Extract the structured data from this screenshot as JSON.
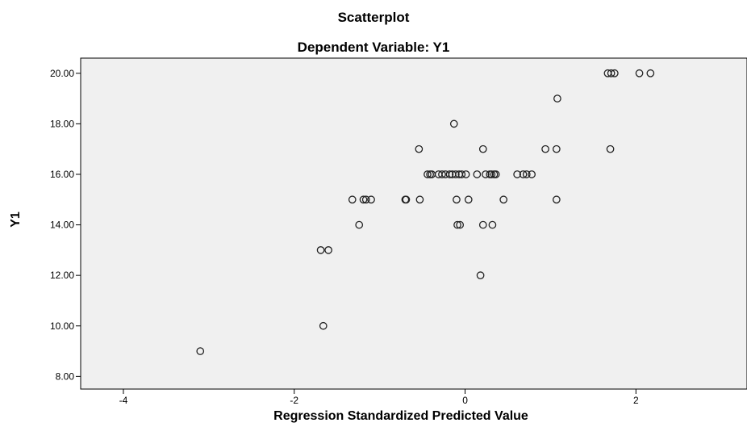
{
  "chart_data": {
    "type": "scatter",
    "title": "Scatterplot",
    "subtitle": "Dependent Variable: Y1",
    "xlabel": "Regression Standardized Predicted Value",
    "ylabel": "Y1",
    "xlim": [
      -4.5,
      3.3
    ],
    "ylim": [
      7.5,
      20.6
    ],
    "x_ticks": [
      -4,
      -2,
      0,
      2
    ],
    "x_tick_labels": [
      "-4",
      "-2",
      "0",
      "2"
    ],
    "y_ticks": [
      8,
      10,
      12,
      14,
      16,
      18,
      20
    ],
    "y_tick_labels": [
      "8.00",
      "10.00",
      "12.00",
      "14.00",
      "16.00",
      "18.00",
      "20.00"
    ],
    "grid": false,
    "plot_background": "#f0f0f0",
    "marker": "hollow-circle",
    "points": [
      {
        "x": -3.1,
        "y": 9
      },
      {
        "x": -1.66,
        "y": 10
      },
      {
        "x": -1.69,
        "y": 13
      },
      {
        "x": -1.6,
        "y": 13
      },
      {
        "x": -1.24,
        "y": 14
      },
      {
        "x": -1.32,
        "y": 15
      },
      {
        "x": -1.19,
        "y": 15
      },
      {
        "x": -1.16,
        "y": 15
      },
      {
        "x": -1.1,
        "y": 15
      },
      {
        "x": -0.7,
        "y": 15
      },
      {
        "x": -0.69,
        "y": 15
      },
      {
        "x": -0.53,
        "y": 15
      },
      {
        "x": -0.54,
        "y": 17
      },
      {
        "x": -0.44,
        "y": 16
      },
      {
        "x": -0.41,
        "y": 16
      },
      {
        "x": -0.39,
        "y": 16
      },
      {
        "x": -0.31,
        "y": 16
      },
      {
        "x": -0.27,
        "y": 16
      },
      {
        "x": -0.23,
        "y": 16
      },
      {
        "x": -0.18,
        "y": 16
      },
      {
        "x": -0.15,
        "y": 16
      },
      {
        "x": -0.13,
        "y": 18
      },
      {
        "x": -0.11,
        "y": 16
      },
      {
        "x": -0.1,
        "y": 15
      },
      {
        "x": -0.09,
        "y": 14
      },
      {
        "x": -0.07,
        "y": 16
      },
      {
        "x": -0.06,
        "y": 14
      },
      {
        "x": -0.04,
        "y": 16
      },
      {
        "x": 0.01,
        "y": 16
      },
      {
        "x": 0.04,
        "y": 15
      },
      {
        "x": 0.14,
        "y": 16
      },
      {
        "x": 0.18,
        "y": 12
      },
      {
        "x": 0.21,
        "y": 14
      },
      {
        "x": 0.21,
        "y": 17
      },
      {
        "x": 0.24,
        "y": 16
      },
      {
        "x": 0.29,
        "y": 16
      },
      {
        "x": 0.31,
        "y": 16
      },
      {
        "x": 0.32,
        "y": 14
      },
      {
        "x": 0.34,
        "y": 16
      },
      {
        "x": 0.36,
        "y": 16
      },
      {
        "x": 0.45,
        "y": 15
      },
      {
        "x": 0.61,
        "y": 16
      },
      {
        "x": 0.68,
        "y": 16
      },
      {
        "x": 0.72,
        "y": 16
      },
      {
        "x": 0.78,
        "y": 16
      },
      {
        "x": 0.94,
        "y": 17
      },
      {
        "x": 1.07,
        "y": 17
      },
      {
        "x": 1.07,
        "y": 15
      },
      {
        "x": 1.08,
        "y": 19
      },
      {
        "x": 1.67,
        "y": 20
      },
      {
        "x": 1.71,
        "y": 20
      },
      {
        "x": 1.75,
        "y": 20
      },
      {
        "x": 1.7,
        "y": 17
      },
      {
        "x": 2.04,
        "y": 20
      },
      {
        "x": 2.17,
        "y": 20
      }
    ]
  }
}
